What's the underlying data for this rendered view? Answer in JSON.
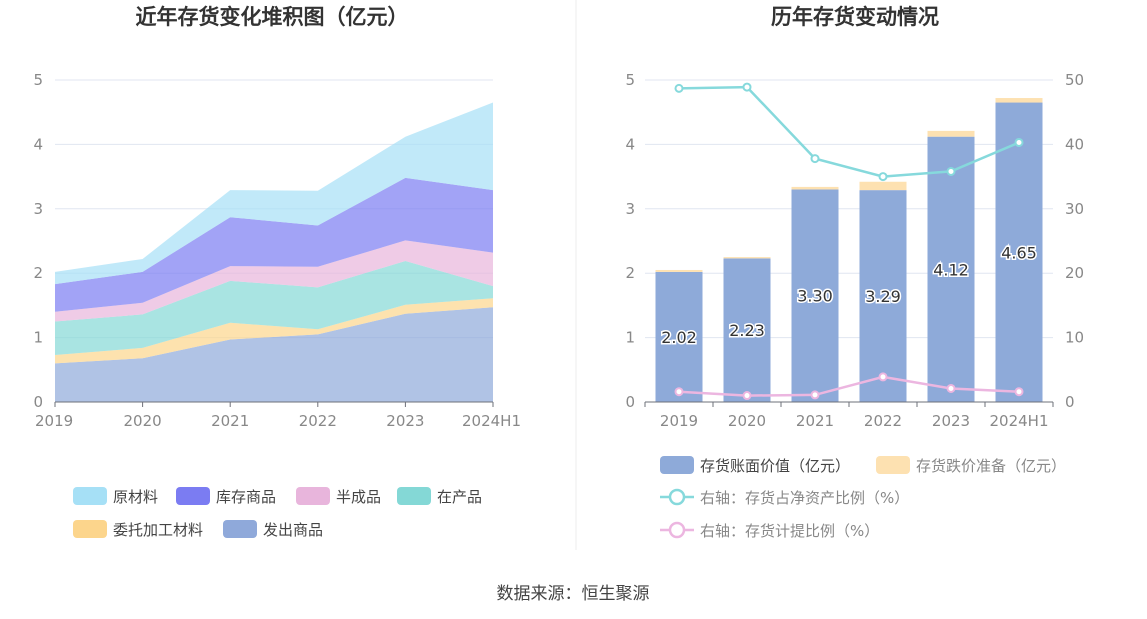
{
  "source_text": "数据来源：恒生聚源",
  "chart_data": [
    {
      "type": "area",
      "stacked": true,
      "title": "近年存货变化堆积图（亿元）",
      "categories": [
        "2019",
        "2020",
        "2021",
        "2022",
        "2023",
        "2024H1"
      ],
      "y_ticks": [
        "0",
        "1",
        "2",
        "3",
        "4",
        "5"
      ],
      "ylim": [
        0,
        5
      ],
      "grid": true,
      "legend_position": "bottom",
      "series": [
        {
          "name": "发出商品",
          "color": "#8fa9da",
          "values": [
            0.6,
            0.68,
            0.97,
            1.05,
            1.37,
            1.47
          ]
        },
        {
          "name": "委托加工材料",
          "color": "#fcd58c",
          "values": [
            0.13,
            0.16,
            0.26,
            0.08,
            0.14,
            0.14
          ]
        },
        {
          "name": "在产品",
          "color": "#84d8d6",
          "values": [
            0.52,
            0.52,
            0.65,
            0.65,
            0.68,
            0.19
          ]
        },
        {
          "name": "半成品",
          "color": "#e8b5dc",
          "values": [
            0.15,
            0.18,
            0.23,
            0.32,
            0.32,
            0.52
          ]
        },
        {
          "name": "库存商品",
          "color": "#7b7cf2",
          "values": [
            0.43,
            0.48,
            0.76,
            0.64,
            0.97,
            0.97
          ]
        },
        {
          "name": "原材料",
          "color": "#a6e0f6",
          "values": [
            0.19,
            0.2,
            0.42,
            0.54,
            0.64,
            1.36
          ]
        }
      ]
    },
    {
      "type": "bar",
      "title": "历年存货变动情况",
      "categories": [
        "2019",
        "2020",
        "2021",
        "2022",
        "2023",
        "2024H1"
      ],
      "y_ticks_left": [
        "0",
        "1",
        "2",
        "3",
        "4",
        "5"
      ],
      "y_ticks_right": [
        "0",
        "10",
        "20",
        "30",
        "40",
        "50"
      ],
      "ylim_left": [
        0,
        5
      ],
      "ylim_right": [
        0,
        50
      ],
      "grid": true,
      "legend_position": "bottom",
      "bars": [
        {
          "name": "存货账面价值（亿元）",
          "color": "#8eaad9",
          "values": [
            2.02,
            2.23,
            3.3,
            3.29,
            4.12,
            4.65
          ],
          "labels": [
            "2.02",
            "2.23",
            "3.30",
            "3.29",
            "4.12",
            "4.65"
          ]
        },
        {
          "name": "存货跌价准备（亿元）",
          "color": "#fde1b1",
          "values": [
            0.03,
            0.02,
            0.04,
            0.13,
            0.09,
            0.07
          ]
        }
      ],
      "lines": [
        {
          "name": "右轴：存货占净资产比例（%）",
          "color": "#86d9dc",
          "values": [
            48.7,
            48.9,
            37.8,
            35.0,
            35.8,
            40.3
          ]
        },
        {
          "name": "右轴：存货计提比例（%）",
          "color": "#ecb6e0",
          "values": [
            1.6,
            1.0,
            1.1,
            3.9,
            2.1,
            1.6
          ]
        }
      ]
    }
  ]
}
